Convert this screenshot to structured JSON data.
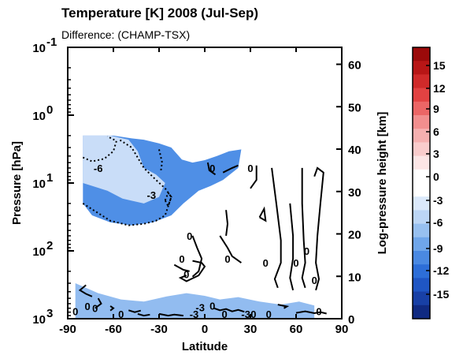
{
  "chart_data": {
    "type": "contour",
    "title": "Temperature [K] 2008 (Jul-Sep)",
    "subtitle": "Difference: (CHAMP-TSX)",
    "xlabel": "Latitude",
    "ylabel": "Pressure [hPa]",
    "y2label": "Log-pressure height [km]",
    "xlim": [
      -90,
      90
    ],
    "x_ticks": [
      -90,
      -60,
      -30,
      0,
      30,
      60,
      90
    ],
    "x_tick_labels": [
      "-90",
      "-60",
      "-30",
      "0",
      "30",
      "60",
      "90"
    ],
    "ylim_pressure": [
      1000,
      0.1
    ],
    "y_scale": "log",
    "y_ticks": [
      {
        "base": "10",
        "exp": "-1"
      },
      {
        "base": "10",
        "exp": "0"
      },
      {
        "base": "10",
        "exp": "1"
      },
      {
        "base": "10",
        "exp": "2"
      },
      {
        "base": "10",
        "exp": "3"
      }
    ],
    "y2lim": [
      0,
      64
    ],
    "y2_ticks": [
      0,
      10,
      20,
      30,
      40,
      50,
      60
    ],
    "colorbar": {
      "levels": [
        -15,
        -12,
        -9,
        -6,
        -3,
        0,
        3,
        6,
        9,
        12,
        15
      ],
      "labels": [
        "15",
        "12",
        "9",
        "6",
        "3",
        "0",
        "-3",
        "-6",
        "-9",
        "-12",
        "-15"
      ],
      "colors_top_to_bottom": [
        "#9b0a0a",
        "#b81616",
        "#d02a2a",
        "#e24242",
        "#ec6666",
        "#f28e8e",
        "#f6b0b0",
        "#facccc",
        "#fde6e6",
        "#ffffff",
        "#ffffff",
        "#dbe9fb",
        "#bcd6f6",
        "#97c0f0",
        "#6fa6ea",
        "#4a89e2",
        "#2d6ed8",
        "#1f56c4",
        "#1840a6",
        "#102a82"
      ]
    },
    "regions": [
      {
        "name": "negative difference below -6 K",
        "lat": [
          -80,
          -60
        ],
        "pressure_hPa": [
          2,
          5
        ],
        "color": "#4f8fe6"
      },
      {
        "name": "negative difference -6 to -3 K",
        "lat": [
          -80,
          -30
        ],
        "pressure_hPa": [
          2,
          20
        ],
        "color": "#92bcf0"
      },
      {
        "name": "negative difference 0 to -3 K",
        "lat": [
          -80,
          25
        ],
        "pressure_hPa": [
          2,
          50
        ],
        "color": "#c9ddf8"
      },
      {
        "name": "negative difference 0 to -3 K near surface",
        "lat": [
          -85,
          70
        ],
        "pressure_hPa": [
          300,
          1000
        ],
        "color": "#c9ddf8"
      }
    ],
    "contour_labels": [
      {
        "text": "-6",
        "lat": -70,
        "pressure_hPa": 6
      },
      {
        "text": "-3",
        "lat": -35,
        "pressure_hPa": 15
      },
      {
        "text": "0",
        "lat": 5,
        "pressure_hPa": 6
      },
      {
        "text": "0",
        "lat": 30,
        "pressure_hPa": 6
      },
      {
        "text": "0",
        "lat": -10,
        "pressure_hPa": 60
      },
      {
        "text": "0",
        "lat": -15,
        "pressure_hPa": 130
      },
      {
        "text": "0",
        "lat": -12,
        "pressure_hPa": 220
      },
      {
        "text": "0",
        "lat": 15,
        "pressure_hPa": 130
      },
      {
        "text": "0",
        "lat": 40,
        "pressure_hPa": 150
      },
      {
        "text": "0",
        "lat": 60,
        "pressure_hPa": 150
      },
      {
        "text": "0",
        "lat": 67,
        "pressure_hPa": 100
      },
      {
        "text": "0",
        "lat": 72,
        "pressure_hPa": 270
      },
      {
        "text": "0",
        "lat": -85,
        "pressure_hPa": 780
      },
      {
        "text": "0",
        "lat": -77,
        "pressure_hPa": 650
      },
      {
        "text": "0",
        "lat": -72,
        "pressure_hPa": 700
      },
      {
        "text": "0",
        "lat": -55,
        "pressure_hPa": 850
      },
      {
        "text": "-3",
        "lat": -7,
        "pressure_hPa": 850
      },
      {
        "text": "-3",
        "lat": -3,
        "pressure_hPa": 680
      },
      {
        "text": "0",
        "lat": 5,
        "pressure_hPa": 640
      },
      {
        "text": "0",
        "lat": 13,
        "pressure_hPa": 850
      },
      {
        "text": "-3",
        "lat": 27,
        "pressure_hPa": 850
      },
      {
        "text": "0",
        "lat": 32,
        "pressure_hPa": 850
      },
      {
        "text": "0",
        "lat": 42,
        "pressure_hPa": 850
      },
      {
        "text": "0",
        "lat": 75,
        "pressure_hPa": 780
      }
    ],
    "grid": false,
    "legend": "colorbar at right"
  }
}
